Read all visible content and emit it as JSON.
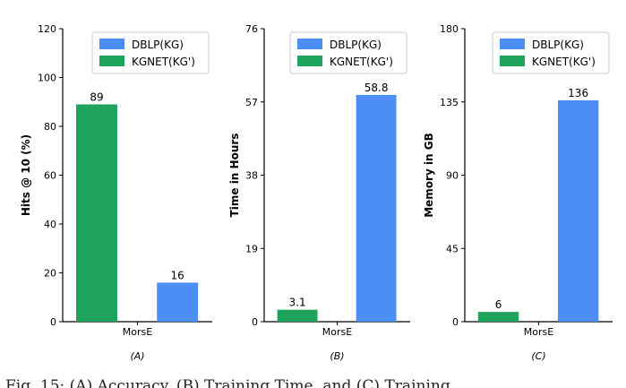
{
  "colors": {
    "series_1": "#4d8ef5",
    "series_2": "#1ea35c",
    "axis": "#000000",
    "legend_border": "#cccccc"
  },
  "chart_data": [
    {
      "type": "bar",
      "panel_label": "(A)",
      "ylabel": "Hits @ 10 (%)",
      "categories": [
        "MorsE"
      ],
      "ylim": [
        0,
        120
      ],
      "yticks": [
        0,
        20,
        40,
        60,
        80,
        100,
        120
      ],
      "ytick_labels": [
        "0",
        "20",
        "40",
        "60",
        "80",
        "100",
        "120"
      ],
      "legend_position": "top-right",
      "series": [
        {
          "name": "DBLP(KG)",
          "values": [
            16
          ],
          "labels": [
            "16"
          ]
        },
        {
          "name": "KGNET(KG')",
          "values": [
            89
          ],
          "labels": [
            "89"
          ]
        }
      ]
    },
    {
      "type": "bar",
      "panel_label": "(B)",
      "ylabel": "Time in Hours",
      "categories": [
        "MorsE"
      ],
      "ylim": [
        0,
        76
      ],
      "yticks": [
        0,
        19,
        38,
        57,
        76
      ],
      "ytick_labels": [
        "0",
        "19",
        "38",
        "57",
        "76"
      ],
      "legend_position": "top-right",
      "series": [
        {
          "name": "DBLP(KG)",
          "values": [
            58.8
          ],
          "labels": [
            "58.8"
          ]
        },
        {
          "name": "KGNET(KG')",
          "values": [
            3.1
          ],
          "labels": [
            "3.1"
          ]
        }
      ]
    },
    {
      "type": "bar",
      "panel_label": "(C)",
      "ylabel": "Memory in GB",
      "categories": [
        "MorsE"
      ],
      "ylim": [
        0,
        180
      ],
      "yticks": [
        0,
        45,
        90,
        135,
        180
      ],
      "ytick_labels": [
        "0",
        "45",
        "90",
        "135",
        "180"
      ],
      "legend_position": "top-right",
      "series": [
        {
          "name": "DBLP(KG)",
          "values": [
            136
          ],
          "labels": [
            "136"
          ]
        },
        {
          "name": "KGNET(KG')",
          "values": [
            6
          ],
          "labels": [
            "6"
          ]
        }
      ]
    }
  ],
  "caption": {
    "text": "Fig. 15: (A) Accuracy, (B) Training Time, and (C) Training"
  }
}
